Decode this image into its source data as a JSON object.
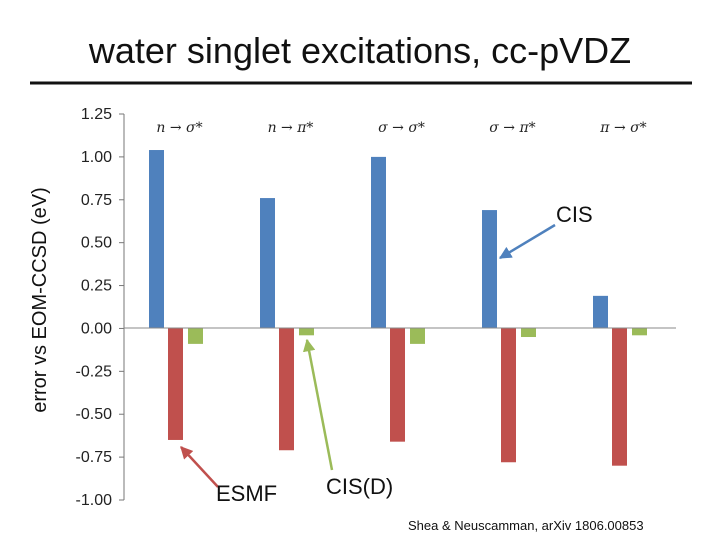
{
  "chart_data": {
    "type": "bar",
    "title": "water singlet excitations, cc-pVDZ",
    "ylabel": "error vs EOM-CCSD (eV)",
    "ylim": [
      -1.0,
      1.25
    ],
    "yticks": [
      "1.25",
      "1.00",
      "0.75",
      "0.50",
      "0.25",
      "0.00",
      "-0.25",
      "-0.50",
      "-0.75",
      "-1.00"
    ],
    "categories": [
      "n → σ*",
      "n → π*",
      "σ → σ*",
      "σ → π*",
      "π → σ*"
    ],
    "series": [
      {
        "name": "CIS",
        "color": "#4f81bd",
        "values": [
          1.04,
          0.76,
          1.0,
          0.69,
          0.19
        ]
      },
      {
        "name": "ESMF",
        "color": "#c0504d",
        "values": [
          -0.65,
          -0.71,
          -0.66,
          -0.78,
          -0.8
        ]
      },
      {
        "name": "CIS(D)",
        "color": "#9bbb59",
        "values": [
          -0.09,
          -0.04,
          -0.09,
          -0.05,
          -0.04
        ]
      }
    ],
    "annotations": [
      {
        "text": "CIS",
        "target_series": "CIS",
        "target_category": 3
      },
      {
        "text": "ESMF",
        "target_series": "ESMF",
        "target_category": 0
      },
      {
        "text": "CIS(D)",
        "target_series": "CIS(D)",
        "target_category": 1
      }
    ],
    "citation": "Shea & Neuscamman, arXiv 1806.00853"
  }
}
